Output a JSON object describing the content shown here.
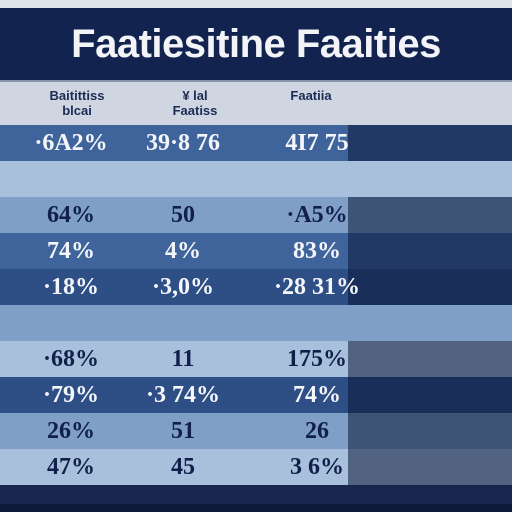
{
  "title": "Faatiesitine Faaities",
  "chart_data": {
    "type": "table",
    "title": "Faatiesitine Faaities",
    "columns": [
      {
        "lines": [
          "Baitittiss",
          "blcai"
        ]
      },
      {
        "lines": [
          "¥ lal",
          "Faatiss"
        ]
      },
      {
        "lines": [
          "",
          "Faatiia"
        ]
      }
    ],
    "rows": [
      {
        "shade": "mid",
        "cells": [
          "·6A2%",
          "39·8 76",
          "4I7 75"
        ]
      },
      {
        "shade": "pale",
        "cells": [
          "",
          "",
          ""
        ]
      },
      {
        "shade": "light",
        "cells": [
          "64%",
          "50",
          "·A5%"
        ]
      },
      {
        "shade": "mid",
        "cells": [
          "74%",
          "4%",
          "83%"
        ]
      },
      {
        "shade": "dark",
        "cells": [
          "·18%",
          "·3,0%",
          "·28 31%"
        ]
      },
      {
        "shade": "light",
        "cells": [
          "",
          "",
          ""
        ]
      },
      {
        "shade": "pale",
        "cells": [
          "·68%",
          "11",
          "175%"
        ]
      },
      {
        "shade": "dark",
        "cells": [
          "·79%",
          "·3 74%",
          "74%"
        ]
      },
      {
        "shade": "light",
        "cells": [
          "26%",
          "51",
          "26"
        ]
      },
      {
        "shade": "pale",
        "cells": [
          "47%",
          "45",
          "3 6%"
        ]
      }
    ],
    "row_fill_levels": [
      0.32,
      0.0,
      0.32,
      0.32,
      0.32,
      0.0,
      0.32,
      0.32,
      0.32,
      0.32
    ]
  }
}
